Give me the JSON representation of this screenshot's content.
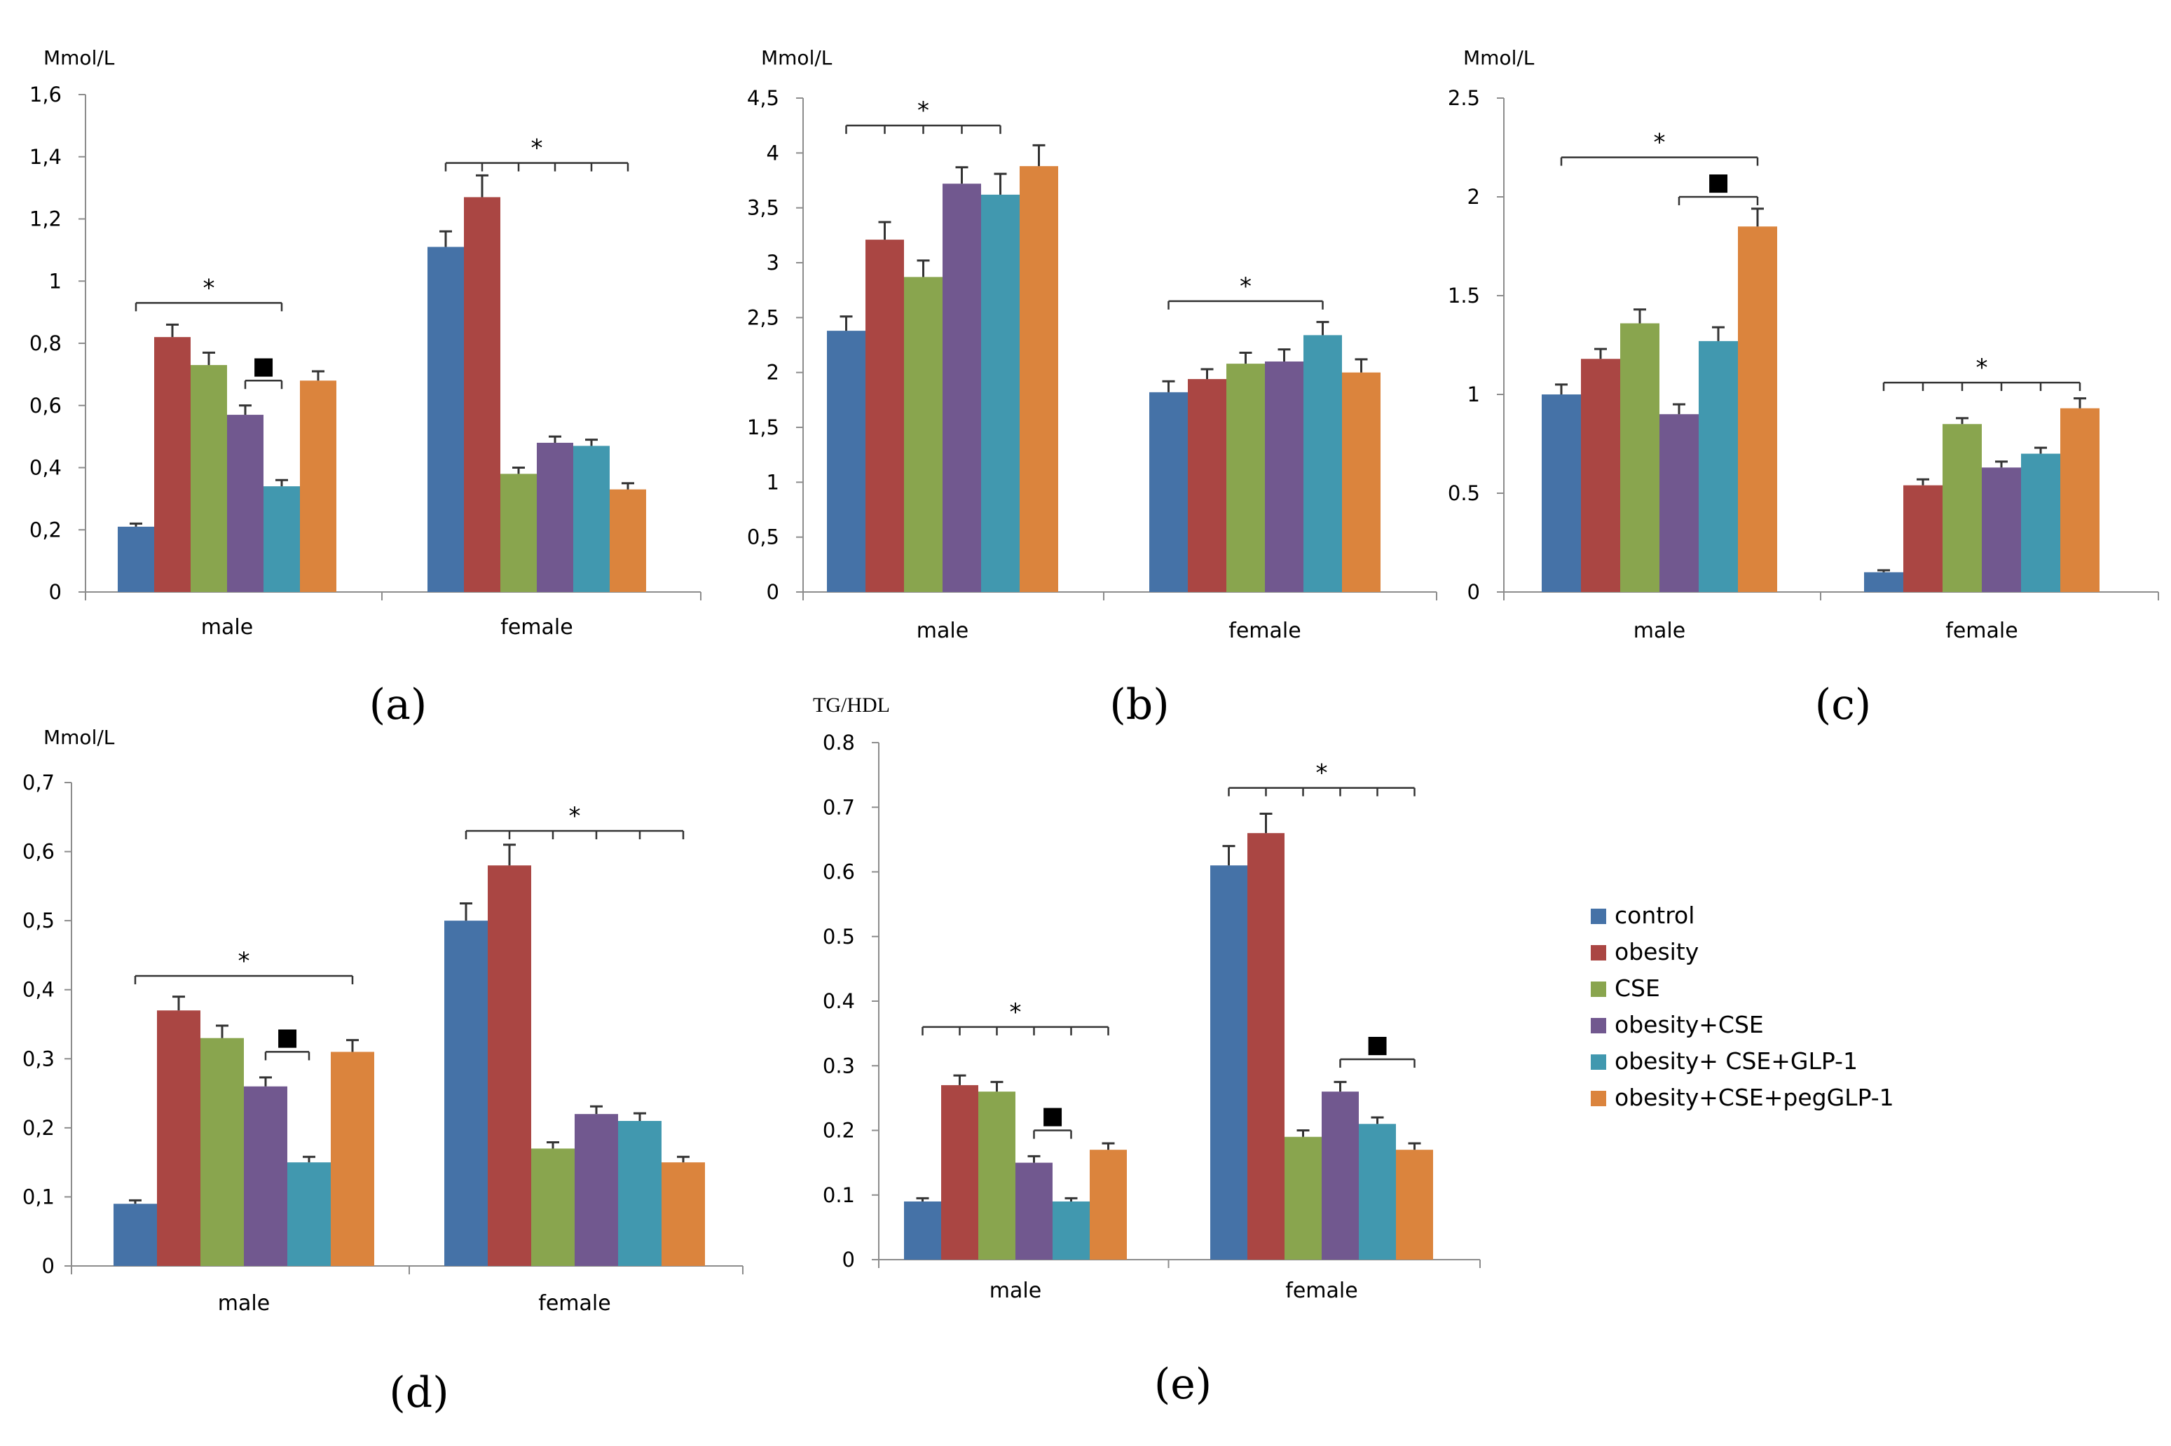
{
  "chart_data": [
    {
      "type": "bar",
      "panel_label": "(a)",
      "ylabel": "Mmol/L",
      "ylim": [
        0,
        1.6
      ],
      "yticks": [
        "0",
        "0,2",
        "0,4",
        "0,6",
        "0,8",
        "1",
        "1,2",
        "1,4",
        "1,6"
      ],
      "categories": [
        "male",
        "female"
      ],
      "series": [
        {
          "name": "control",
          "values": [
            0.21,
            1.11
          ],
          "errors": [
            0.01,
            0.05
          ]
        },
        {
          "name": "obesity",
          "values": [
            0.82,
            1.27
          ],
          "errors": [
            0.04,
            0.07
          ]
        },
        {
          "name": "CSE",
          "values": [
            0.73,
            0.38
          ],
          "errors": [
            0.04,
            0.02
          ]
        },
        {
          "name": "obesity+CSE",
          "values": [
            0.57,
            0.48
          ],
          "errors": [
            0.03,
            0.02
          ]
        },
        {
          "name": "obesity+ CSE+GLP-1",
          "values": [
            0.34,
            0.47
          ],
          "errors": [
            0.02,
            0.02
          ]
        },
        {
          "name": "obesity+CSE+pegGLP-1",
          "values": [
            0.68,
            0.33
          ],
          "errors": [
            0.03,
            0.02
          ]
        }
      ],
      "annotations": [
        {
          "category": 0,
          "from": 0,
          "to": 4,
          "y": 0.93,
          "symbol": "*",
          "ticks": false
        },
        {
          "category": 0,
          "from": 3,
          "to": 4,
          "y": 0.68,
          "symbol": "■",
          "ticks": false
        },
        {
          "category": 1,
          "from": 0,
          "to": 5,
          "y": 1.38,
          "symbol": "*",
          "ticks": true
        }
      ]
    },
    {
      "type": "bar",
      "panel_label": "(b)",
      "ylabel": "Mmol/L",
      "ylim": [
        0,
        4.5
      ],
      "yticks": [
        "0",
        "0,5",
        "1",
        "1,5",
        "2",
        "2,5",
        "3",
        "3,5",
        "4",
        "4,5"
      ],
      "categories": [
        "male",
        "female"
      ],
      "series": [
        {
          "name": "control",
          "values": [
            2.38,
            1.82
          ],
          "errors": [
            0.13,
            0.1
          ]
        },
        {
          "name": "obesity",
          "values": [
            3.21,
            1.94
          ],
          "errors": [
            0.16,
            0.09
          ]
        },
        {
          "name": "CSE",
          "values": [
            2.87,
            2.08
          ],
          "errors": [
            0.15,
            0.1
          ]
        },
        {
          "name": "obesity+CSE",
          "values": [
            3.72,
            2.1
          ],
          "errors": [
            0.15,
            0.11
          ]
        },
        {
          "name": "obesity+ CSE+GLP-1",
          "values": [
            3.62,
            2.34
          ],
          "errors": [
            0.19,
            0.12
          ]
        },
        {
          "name": "obesity+CSE+pegGLP-1",
          "values": [
            3.88,
            2.0
          ],
          "errors": [
            0.19,
            0.12
          ]
        }
      ],
      "annotations": [
        {
          "category": 0,
          "from": 0,
          "to": 4,
          "y": 4.25,
          "symbol": "*",
          "ticks": true
        },
        {
          "category": 1,
          "from": 0,
          "to": 4,
          "y": 2.65,
          "symbol": "*",
          "ticks": false
        }
      ]
    },
    {
      "type": "bar",
      "panel_label": "(c)",
      "ylabel": "Mmol/L",
      "ylim": [
        0,
        2.5
      ],
      "yticks": [
        "0",
        "0.5",
        "1",
        "1.5",
        "2",
        "2.5"
      ],
      "categories": [
        "male",
        "female"
      ],
      "series": [
        {
          "name": "control",
          "values": [
            1.0,
            0.1
          ],
          "errors": [
            0.05,
            0.01
          ]
        },
        {
          "name": "obesity",
          "values": [
            1.18,
            0.54
          ],
          "errors": [
            0.05,
            0.03
          ]
        },
        {
          "name": "CSE",
          "values": [
            1.36,
            0.85
          ],
          "errors": [
            0.07,
            0.03
          ]
        },
        {
          "name": "obesity+CSE",
          "values": [
            0.9,
            0.63
          ],
          "errors": [
            0.05,
            0.03
          ]
        },
        {
          "name": "obesity+ CSE+GLP-1",
          "values": [
            1.27,
            0.7
          ],
          "errors": [
            0.07,
            0.03
          ]
        },
        {
          "name": "obesity+CSE+pegGLP-1",
          "values": [
            1.85,
            0.93
          ],
          "errors": [
            0.09,
            0.05
          ]
        }
      ],
      "annotations": [
        {
          "category": 0,
          "from": 0,
          "to": 5,
          "y": 2.2,
          "symbol": "*",
          "ticks": false
        },
        {
          "category": 0,
          "from": 3,
          "to": 5,
          "y": 2.0,
          "symbol": "■",
          "ticks": false
        },
        {
          "category": 1,
          "from": 0,
          "to": 5,
          "y": 1.06,
          "symbol": "*",
          "ticks": true
        }
      ]
    },
    {
      "type": "bar",
      "panel_label": "(d)",
      "ylabel": "Mmol/L",
      "ylim": [
        0,
        0.7
      ],
      "yticks": [
        "0",
        "0,1",
        "0,2",
        "0,3",
        "0,4",
        "0,5",
        "0,6",
        "0,7"
      ],
      "categories": [
        "male",
        "female"
      ],
      "series": [
        {
          "name": "control",
          "values": [
            0.09,
            0.5
          ],
          "errors": [
            0.005,
            0.025
          ]
        },
        {
          "name": "obesity",
          "values": [
            0.37,
            0.58
          ],
          "errors": [
            0.02,
            0.03
          ]
        },
        {
          "name": "CSE",
          "values": [
            0.33,
            0.17
          ],
          "errors": [
            0.018,
            0.009
          ]
        },
        {
          "name": "obesity+CSE",
          "values": [
            0.26,
            0.22
          ],
          "errors": [
            0.013,
            0.011
          ]
        },
        {
          "name": "obesity+ CSE+GLP-1",
          "values": [
            0.15,
            0.21
          ],
          "errors": [
            0.008,
            0.011
          ]
        },
        {
          "name": "obesity+CSE+pegGLP-1",
          "values": [
            0.31,
            0.15
          ],
          "errors": [
            0.017,
            0.008
          ]
        }
      ],
      "annotations": [
        {
          "category": 0,
          "from": 0,
          "to": 5,
          "y": 0.42,
          "symbol": "*",
          "ticks": false
        },
        {
          "category": 0,
          "from": 3,
          "to": 4,
          "y": 0.31,
          "symbol": "■",
          "ticks": false
        },
        {
          "category": 1,
          "from": 0,
          "to": 5,
          "y": 0.63,
          "symbol": "*",
          "ticks": true
        }
      ]
    },
    {
      "type": "bar",
      "panel_label": "(e)",
      "ylabel": "TG/HDL",
      "ylim": [
        0,
        0.8
      ],
      "yticks": [
        "0",
        "0.1",
        "0.2",
        "0.3",
        "0.4",
        "0.5",
        "0.6",
        "0.7",
        "0.8"
      ],
      "categories": [
        "male",
        "female"
      ],
      "series": [
        {
          "name": "control",
          "values": [
            0.09,
            0.61
          ],
          "errors": [
            0.005,
            0.03
          ]
        },
        {
          "name": "obesity",
          "values": [
            0.27,
            0.66
          ],
          "errors": [
            0.015,
            0.03
          ]
        },
        {
          "name": "CSE",
          "values": [
            0.26,
            0.19
          ],
          "errors": [
            0.015,
            0.01
          ]
        },
        {
          "name": "obesity+CSE",
          "values": [
            0.15,
            0.26
          ],
          "errors": [
            0.01,
            0.015
          ]
        },
        {
          "name": "obesity+ CSE+GLP-1",
          "values": [
            0.09,
            0.21
          ],
          "errors": [
            0.005,
            0.01
          ]
        },
        {
          "name": "obesity+CSE+pegGLP-1",
          "values": [
            0.17,
            0.17
          ],
          "errors": [
            0.01,
            0.01
          ]
        }
      ],
      "annotations": [
        {
          "category": 0,
          "from": 0,
          "to": 5,
          "y": 0.36,
          "symbol": "*",
          "ticks": true
        },
        {
          "category": 0,
          "from": 3,
          "to": 4,
          "y": 0.2,
          "symbol": "■",
          "ticks": false
        },
        {
          "category": 1,
          "from": 0,
          "to": 5,
          "y": 0.73,
          "symbol": "*",
          "ticks": true
        },
        {
          "category": 1,
          "from": 3,
          "to": 5,
          "y": 0.31,
          "symbol": "■",
          "ticks": false
        }
      ]
    }
  ],
  "legend": {
    "items": [
      {
        "label": "control",
        "color": "#4572a7"
      },
      {
        "label": "obesity",
        "color": "#aa4643"
      },
      {
        "label": "CSE",
        "color": "#89a54e"
      },
      {
        "label": "obesity+CSE",
        "color": "#71588f"
      },
      {
        "label": "obesity+ CSE+GLP-1",
        "color": "#4198af"
      },
      {
        "label": "obesity+CSE+pegGLP-1",
        "color": "#db843d"
      }
    ]
  },
  "colors": [
    "#4572a7",
    "#aa4643",
    "#89a54e",
    "#71588f",
    "#4198af",
    "#db843d"
  ]
}
